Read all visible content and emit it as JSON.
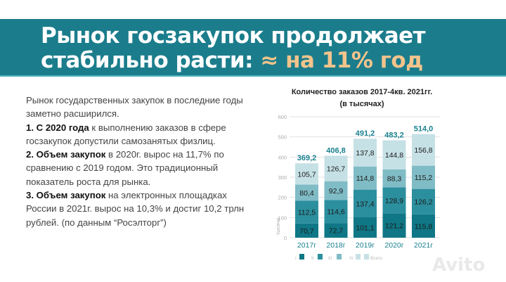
{
  "header": {
    "line1": "Рынок госзакупок продолжает",
    "line2_main": "стабильно расти: ",
    "line2_highlight": "≈ на 11% год"
  },
  "body": {
    "intro": "Рынок государственных закупок в последние годы заметно расширился.",
    "p1_bold": "1. С 2020 года",
    "p1_rest": " к выполнению заказов в сфере госзакупок допустили самозанятых физлиц.",
    "p2_bold": "2. Объем закупок",
    "p2_rest": " в 2020г. вырос на 11,7% по сравнению с 2019 годом. Это традиционный показатель роста для рынка.",
    "p3_bold": "3. Объем закупок",
    "p3_rest": " на электронных площадках России в 2021г. вырос на 10,3% и достиг 10,2 трлн рублей. (по данным “Росэлторг”)"
  },
  "watermark": "Avito",
  "chart_data": {
    "type": "bar",
    "stacked": true,
    "title": "Количество заказов 2017-4кв. 2021гг.",
    "subtitle": "(в тысячах)",
    "ylabel": "тысячи",
    "ylim": [
      0,
      600
    ],
    "yticks": [
      "0",
      "100",
      "200",
      "300",
      "400",
      "500",
      "600"
    ],
    "grid": true,
    "categories": [
      "2017г",
      "2018г",
      "2019г",
      "2020г",
      "2021г"
    ],
    "series": [
      {
        "name": "I",
        "color": "#0f7786",
        "values": [
          70.7,
          72.7,
          101.1,
          121.2,
          115.8
        ],
        "labels": [
          "70,7",
          "72,7",
          "101,1",
          "121,2",
          "115,8"
        ]
      },
      {
        "name": "II",
        "color": "#2b8f9e",
        "values": [
          112.5,
          114.6,
          137.4,
          128.9,
          126.2
        ],
        "labels": [
          "112,5",
          "114,6",
          "137,4",
          "128,9",
          "126,2"
        ]
      },
      {
        "name": "III",
        "color": "#80bcc6",
        "values": [
          80.4,
          92.9,
          114.8,
          88.3,
          115.2
        ],
        "labels": [
          "80,4",
          "92,9",
          "114,8",
          "88,3",
          "115,2"
        ]
      },
      {
        "name": "IV",
        "color": "#c6e1e6",
        "values": [
          105.7,
          126.7,
          137.8,
          144.8,
          156.8
        ],
        "labels": [
          "105,7",
          "126,7",
          "137,8",
          "144,8",
          "156,8"
        ]
      }
    ],
    "totals": {
      "name": "Всего",
      "color": "#e3f0f2",
      "label_color": "#1a8190",
      "values": [
        369.2,
        406.8,
        491.2,
        483.2,
        514.0
      ],
      "labels": [
        "369,2",
        "406,8",
        "491,2",
        "483,2",
        "514,0"
      ]
    },
    "legend_position": "bottom"
  }
}
